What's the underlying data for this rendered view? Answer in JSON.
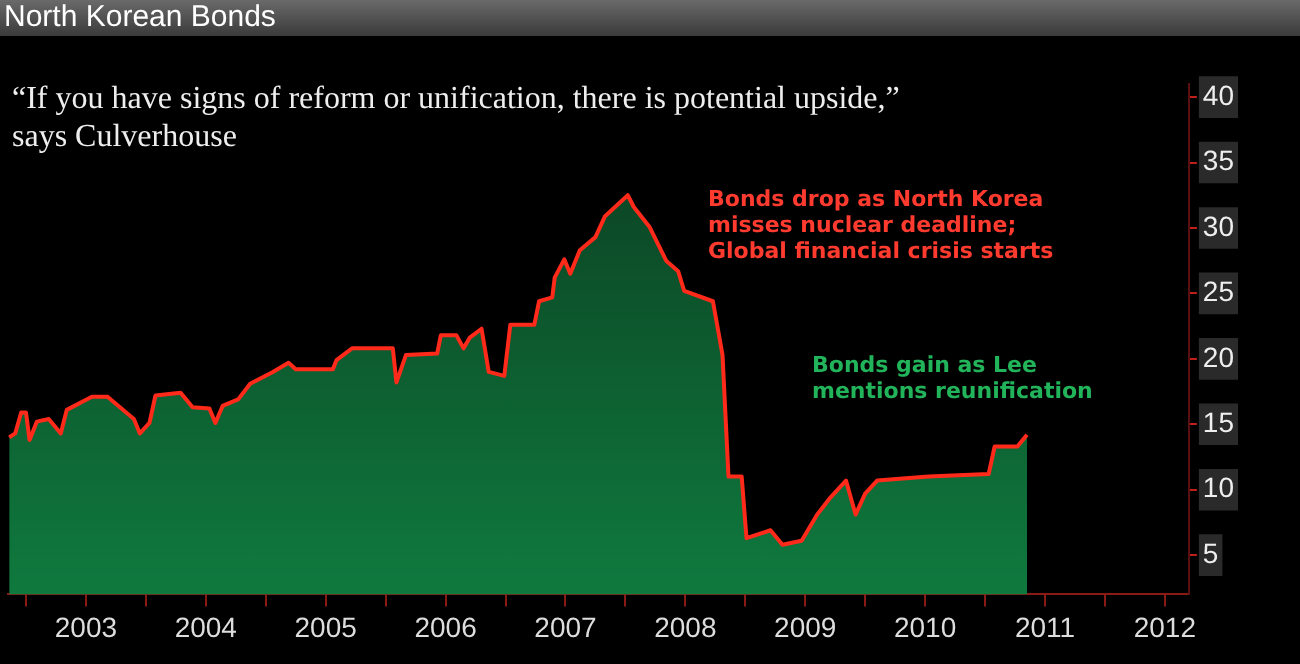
{
  "chart_data": {
    "type": "area",
    "title": "North Korean Bonds",
    "x": [
      2002.86,
      2002.91,
      2002.96,
      2003.0,
      2003.03,
      2003.09,
      2003.19,
      2003.29,
      2003.34,
      2003.55,
      2003.68,
      2003.9,
      2003.95,
      2004.03,
      2004.08,
      2004.29,
      2004.39,
      2004.53,
      2004.58,
      2004.64,
      2004.77,
      2004.87,
      2005.06,
      2005.19,
      2005.25,
      2005.56,
      2005.59,
      2005.72,
      2006.06,
      2006.09,
      2006.17,
      2006.43,
      2006.46,
      2006.59,
      2006.65,
      2006.7,
      2006.8,
      2006.86,
      2006.99,
      2007.04,
      2007.24,
      2007.28,
      2007.39,
      2007.41,
      2007.49,
      2007.54,
      2007.62,
      2007.75,
      2007.83,
      2008.02,
      2008.07,
      2008.2,
      2008.34,
      2008.44,
      2008.49,
      2008.73,
      2008.81,
      2008.86,
      2008.97,
      2009.01,
      2009.21,
      2009.31,
      2009.47,
      2009.6,
      2009.71,
      2009.84,
      2009.92,
      2010.0,
      2010.1,
      2010.53,
      2011.03,
      2011.08,
      2011.27,
      2011.35
    ],
    "series": [
      {
        "color": "#0f7a3e",
        "values": [
          14.0,
          14.3,
          15.9,
          15.9,
          13.8,
          15.2,
          15.4,
          14.3,
          16.1,
          17.1,
          17.1,
          15.4,
          14.3,
          15.1,
          17.2,
          17.4,
          16.3,
          16.2,
          15.1,
          16.4,
          16.9,
          18.1,
          19.0,
          19.7,
          19.2,
          19.2,
          19.9,
          20.8,
          20.8,
          18.2,
          20.3,
          20.4,
          21.8,
          21.8,
          20.8,
          21.6,
          22.3,
          19.0,
          18.7,
          22.6,
          22.6,
          24.4,
          24.7,
          26.2,
          27.6,
          26.5,
          28.3,
          29.3,
          30.9,
          32.5,
          31.6,
          30.1,
          27.5,
          26.7,
          25.2,
          24.4,
          20.3,
          11.0,
          11.0,
          6.3,
          6.9,
          5.8,
          6.1,
          8.1,
          9.4,
          10.7,
          8.1,
          9.7,
          10.7,
          11.0,
          11.2,
          13.3,
          13.3,
          14.2
        ]
      }
    ],
    "xlim": [
      2002.85,
      2012.7
    ],
    "xticks": [
      {
        "value": 2003,
        "label": null
      },
      {
        "value": 2003.5,
        "label": "2003"
      },
      {
        "value": 2004,
        "label": null
      },
      {
        "value": 2004.5,
        "label": "2004"
      },
      {
        "value": 2005,
        "label": null
      },
      {
        "value": 2005.5,
        "label": "2005"
      },
      {
        "value": 2006,
        "label": null
      },
      {
        "value": 2006.5,
        "label": "2006"
      },
      {
        "value": 2007,
        "label": null
      },
      {
        "value": 2007.5,
        "label": "2007"
      },
      {
        "value": 2008,
        "label": null
      },
      {
        "value": 2008.5,
        "label": "2008"
      },
      {
        "value": 2009,
        "label": null
      },
      {
        "value": 2009.5,
        "label": "2009"
      },
      {
        "value": 2010,
        "label": null
      },
      {
        "value": 2010.5,
        "label": "2010"
      },
      {
        "value": 2011,
        "label": null
      },
      {
        "value": 2011.5,
        "label": "2011"
      },
      {
        "value": 2012,
        "label": null
      },
      {
        "value": 2012.5,
        "label": "2012"
      }
    ],
    "ylim": [
      2,
      41
    ],
    "yticks": [
      5,
      10,
      15,
      20,
      25,
      30,
      35,
      40
    ],
    "legend": false,
    "annotations": [
      "“If you have signs of reform or unification, there is potential upside,” says Culverhouse",
      "Bonds drop as North Korea misses nuclear deadline; Global financial crisis starts",
      "Bonds gain as Lee mentions reunification"
    ]
  }
}
